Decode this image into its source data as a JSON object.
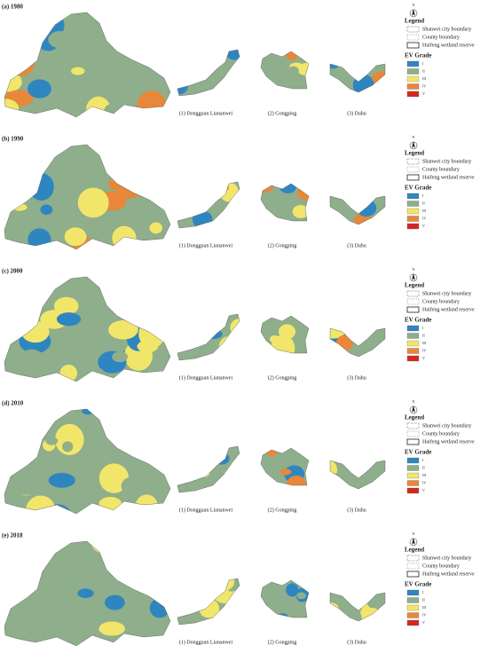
{
  "panels": [
    {
      "label": "(a) 1980",
      "insets": [
        "(1) Dongguan Liananwei",
        "(2) Gongping",
        "(3) Dahu"
      ]
    },
    {
      "label": "(b) 1990",
      "insets": [
        "(1) Dongguan Liananwei",
        "(2) Gongping",
        "(3) Dahu"
      ]
    },
    {
      "label": "(c) 2000",
      "insets": [
        "(1) Dongguan Liananwei",
        "(2) Gongping",
        "(3) Dahu"
      ]
    },
    {
      "label": "(d) 2010",
      "insets": [
        "(1) Dongguan Liananwei",
        "(2) Gongping",
        "(3) Dahu"
      ]
    },
    {
      "label": "(e) 2018",
      "insets": [
        "(1) Dongguan Liananwei",
        "(2) Gongping",
        "(3) Dahu"
      ]
    }
  ],
  "legend": {
    "north": "N",
    "title": "Legend",
    "boundaries": [
      "Shanwei city boundary",
      "County boundary",
      "Haifeng wetland reserve"
    ],
    "grade_title": "EV Grade",
    "grades": [
      {
        "label": "I",
        "color": "#2e86c1"
      },
      {
        "label": "II",
        "color": "#8fae8b"
      },
      {
        "label": "III",
        "color": "#f2e66a"
      },
      {
        "label": "IV",
        "color": "#e8873a"
      },
      {
        "label": "V",
        "color": "#d7261e"
      }
    ]
  }
}
